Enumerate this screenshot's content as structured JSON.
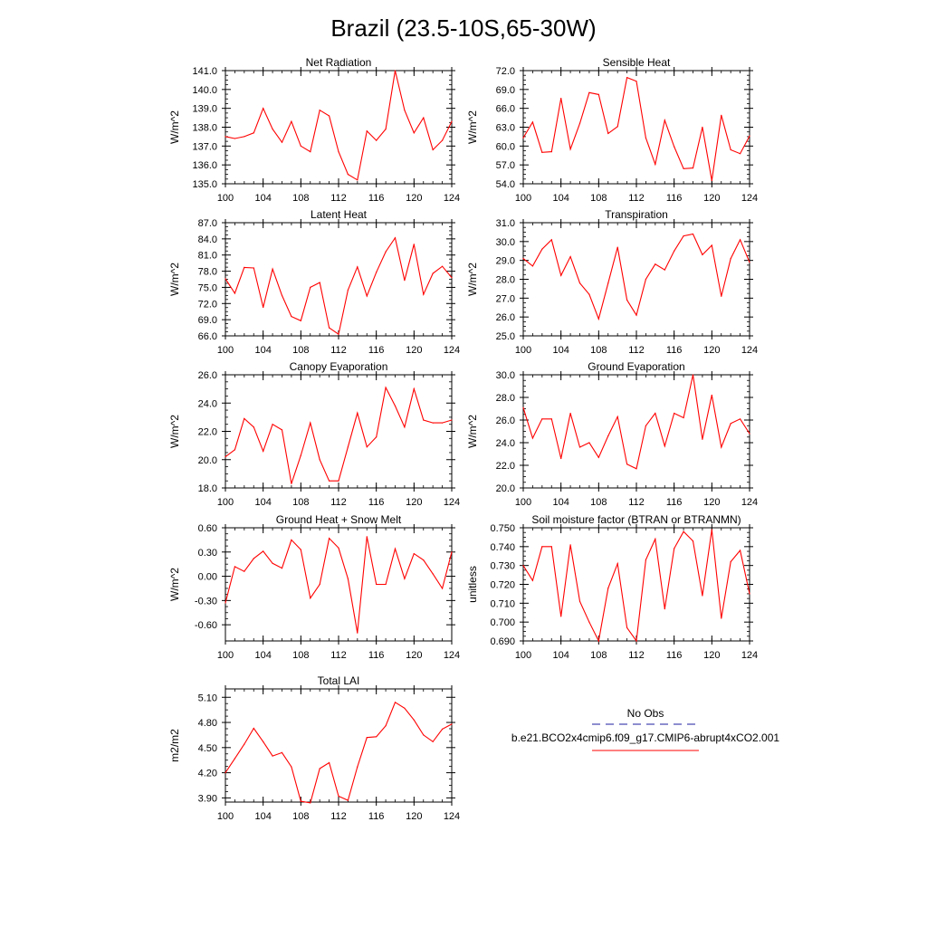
{
  "figure": {
    "title": "Brazil (23.5-10S,65-30W)"
  },
  "legend": {
    "entries": [
      {
        "label": "No Obs",
        "color": "#1c1ca0",
        "dash": true
      },
      {
        "label": "b.e21.BCO2x4cmip6.f09_g17.CMIP6-abrupt4xCO2.001",
        "color": "#ff0000",
        "dash": false
      }
    ]
  },
  "colors": {
    "series": "#ff0000",
    "axis": "#000000"
  },
  "chart_data": [
    {
      "type": "line",
      "title": "Net Radiation",
      "ylabel": "W/m^2",
      "ylim": [
        135.0,
        141.0
      ],
      "yticks": [
        "135.0",
        "136.0",
        "137.0",
        "138.0",
        "139.0",
        "140.0",
        "141.0"
      ],
      "xlim": [
        100,
        124
      ],
      "xticks": [
        "100",
        "104",
        "108",
        "112",
        "116",
        "120",
        "124"
      ],
      "x": [
        100,
        101,
        102,
        103,
        104,
        105,
        106,
        107,
        108,
        109,
        110,
        111,
        112,
        113,
        114,
        115,
        116,
        117,
        118,
        119,
        120,
        121,
        122,
        123,
        124
      ],
      "series": [
        {
          "values": [
            137.5,
            137.4,
            137.5,
            137.7,
            139.0,
            137.9,
            137.2,
            138.3,
            137.0,
            136.7,
            138.9,
            138.6,
            136.7,
            135.5,
            135.2,
            137.8,
            137.3,
            137.9,
            141.0,
            138.9,
            137.7,
            138.5,
            136.8,
            137.3,
            138.3
          ]
        }
      ]
    },
    {
      "type": "line",
      "title": "Sensible Heat",
      "ylabel": "W/m^2",
      "ylim": [
        54.0,
        72.0
      ],
      "yticks": [
        "54.0",
        "57.0",
        "60.0",
        "63.0",
        "66.0",
        "69.0",
        "72.0"
      ],
      "xlim": [
        100,
        124
      ],
      "xticks": [
        "100",
        "104",
        "108",
        "112",
        "116",
        "120",
        "124"
      ],
      "x": [
        100,
        101,
        102,
        103,
        104,
        105,
        106,
        107,
        108,
        109,
        110,
        111,
        112,
        113,
        114,
        115,
        116,
        117,
        118,
        119,
        120,
        121,
        122,
        123,
        124
      ],
      "series": [
        {
          "values": [
            61.3,
            63.8,
            59.0,
            59.1,
            67.6,
            59.5,
            63.6,
            68.5,
            68.2,
            62.0,
            63.1,
            70.9,
            70.3,
            61.3,
            57.1,
            64.1,
            59.9,
            56.4,
            56.5,
            63.0,
            54.5,
            64.9,
            59.4,
            58.8,
            61.6
          ]
        }
      ]
    },
    {
      "type": "line",
      "title": "Latent Heat",
      "ylabel": "W/m^2",
      "ylim": [
        66.0,
        87.0
      ],
      "yticks": [
        "66.0",
        "69.0",
        "72.0",
        "75.0",
        "78.0",
        "81.0",
        "84.0",
        "87.0"
      ],
      "xlim": [
        100,
        124
      ],
      "xticks": [
        "100",
        "104",
        "108",
        "112",
        "116",
        "120",
        "124"
      ],
      "x": [
        100,
        101,
        102,
        103,
        104,
        105,
        106,
        107,
        108,
        109,
        110,
        111,
        112,
        113,
        114,
        115,
        116,
        117,
        118,
        119,
        120,
        121,
        122,
        123,
        124
      ],
      "series": [
        {
          "values": [
            76.6,
            73.9,
            78.7,
            78.6,
            71.3,
            78.4,
            73.5,
            69.6,
            68.8,
            75.0,
            75.9,
            67.5,
            66.3,
            74.5,
            78.8,
            73.4,
            77.8,
            81.6,
            84.2,
            76.3,
            83.0,
            73.7,
            77.6,
            78.9,
            76.8
          ]
        }
      ]
    },
    {
      "type": "line",
      "title": "Transpiration",
      "ylabel": "W/m^2",
      "ylim": [
        25.0,
        31.0
      ],
      "yticks": [
        "25.0",
        "26.0",
        "27.0",
        "28.0",
        "29.0",
        "30.0",
        "31.0"
      ],
      "xlim": [
        100,
        124
      ],
      "xticks": [
        "100",
        "104",
        "108",
        "112",
        "116",
        "120",
        "124"
      ],
      "x": [
        100,
        101,
        102,
        103,
        104,
        105,
        106,
        107,
        108,
        109,
        110,
        111,
        112,
        113,
        114,
        115,
        116,
        117,
        118,
        119,
        120,
        121,
        122,
        123,
        124
      ],
      "series": [
        {
          "values": [
            29.1,
            28.7,
            29.6,
            30.1,
            28.2,
            29.2,
            27.8,
            27.2,
            25.9,
            27.8,
            29.7,
            26.9,
            26.1,
            28.0,
            28.8,
            28.5,
            29.5,
            30.3,
            30.4,
            29.3,
            29.8,
            27.1,
            29.1,
            30.1,
            28.9
          ]
        }
      ]
    },
    {
      "type": "line",
      "title": "Canopy Evaporation",
      "ylabel": "W/m^2",
      "ylim": [
        18.0,
        26.0
      ],
      "yticks": [
        "18.0",
        "20.0",
        "22.0",
        "24.0",
        "26.0"
      ],
      "xlim": [
        100,
        124
      ],
      "xticks": [
        "100",
        "104",
        "108",
        "112",
        "116",
        "120",
        "124"
      ],
      "x": [
        100,
        101,
        102,
        103,
        104,
        105,
        106,
        107,
        108,
        109,
        110,
        111,
        112,
        113,
        114,
        115,
        116,
        117,
        118,
        119,
        120,
        121,
        122,
        123,
        124
      ],
      "series": [
        {
          "values": [
            20.2,
            20.7,
            22.9,
            22.3,
            20.6,
            22.5,
            22.1,
            18.3,
            20.3,
            22.6,
            20.0,
            18.5,
            18.5,
            20.9,
            23.3,
            20.9,
            21.6,
            25.1,
            23.8,
            22.3,
            25.0,
            22.8,
            22.6,
            22.6,
            22.8
          ]
        }
      ]
    },
    {
      "type": "line",
      "title": "Ground Evaporation",
      "ylabel": "W/m^2",
      "ylim": [
        20.0,
        30.0
      ],
      "yticks": [
        "20.0",
        "22.0",
        "24.0",
        "26.0",
        "28.0",
        "30.0"
      ],
      "xlim": [
        100,
        124
      ],
      "xticks": [
        "100",
        "104",
        "108",
        "112",
        "116",
        "120",
        "124"
      ],
      "x": [
        100,
        101,
        102,
        103,
        104,
        105,
        106,
        107,
        108,
        109,
        110,
        111,
        112,
        113,
        114,
        115,
        116,
        117,
        118,
        119,
        120,
        121,
        122,
        123,
        124
      ],
      "series": [
        {
          "values": [
            27.1,
            24.4,
            26.1,
            26.1,
            22.6,
            26.6,
            23.6,
            24.0,
            22.7,
            24.6,
            26.3,
            22.1,
            21.7,
            25.5,
            26.6,
            23.7,
            26.6,
            26.2,
            30.0,
            24.3,
            28.2,
            23.6,
            25.7,
            26.1,
            24.8
          ]
        }
      ]
    },
    {
      "type": "line",
      "title": "Ground Heat + Snow Melt",
      "ylabel": "W/m^2",
      "ylim": [
        -0.8,
        0.6
      ],
      "yticks": [
        "-0.60",
        "-0.30",
        "0.00",
        "0.30",
        "0.60"
      ],
      "ytick_values": [
        -0.6,
        -0.3,
        0.0,
        0.3,
        0.6
      ],
      "xlim": [
        100,
        124
      ],
      "xticks": [
        "100",
        "104",
        "108",
        "112",
        "116",
        "120",
        "124"
      ],
      "x": [
        100,
        101,
        102,
        103,
        104,
        105,
        106,
        107,
        108,
        109,
        110,
        111,
        112,
        113,
        114,
        115,
        116,
        117,
        118,
        119,
        120,
        121,
        122,
        123,
        124
      ],
      "series": [
        {
          "values": [
            -0.33,
            0.12,
            0.06,
            0.22,
            0.31,
            0.16,
            0.1,
            0.45,
            0.33,
            -0.27,
            -0.1,
            0.47,
            0.35,
            -0.03,
            -0.7,
            0.49,
            -0.1,
            -0.1,
            0.34,
            -0.03,
            0.28,
            0.2,
            0.03,
            -0.15,
            0.3
          ]
        }
      ]
    },
    {
      "type": "line",
      "title": "Soil moisture factor (BTRAN or BTRANMN)",
      "ylabel": "unitless",
      "ylim": [
        0.69,
        0.75
      ],
      "yticks": [
        "0.690",
        "0.700",
        "0.710",
        "0.720",
        "0.730",
        "0.740",
        "0.750"
      ],
      "xlim": [
        100,
        124
      ],
      "xticks": [
        "100",
        "104",
        "108",
        "112",
        "116",
        "120",
        "124"
      ],
      "x": [
        100,
        101,
        102,
        103,
        104,
        105,
        106,
        107,
        108,
        109,
        110,
        111,
        112,
        113,
        114,
        115,
        116,
        117,
        118,
        119,
        120,
        121,
        122,
        123,
        124
      ],
      "series": [
        {
          "values": [
            0.73,
            0.722,
            0.74,
            0.74,
            0.703,
            0.741,
            0.711,
            0.7,
            0.69,
            0.718,
            0.731,
            0.697,
            0.69,
            0.733,
            0.744,
            0.707,
            0.739,
            0.748,
            0.743,
            0.714,
            0.749,
            0.702,
            0.732,
            0.738,
            0.715
          ]
        }
      ]
    },
    {
      "type": "line",
      "title": "Total LAI",
      "ylabel": "m2/m2",
      "ylim": [
        3.85,
        5.2
      ],
      "yticks": [
        "3.90",
        "4.20",
        "4.50",
        "4.80",
        "5.10"
      ],
      "ytick_values": [
        3.9,
        4.2,
        4.5,
        4.8,
        5.1
      ],
      "xlim": [
        100,
        124
      ],
      "xticks": [
        "100",
        "104",
        "108",
        "112",
        "116",
        "120",
        "124"
      ],
      "x": [
        100,
        101,
        102,
        103,
        104,
        105,
        106,
        107,
        108,
        109,
        110,
        111,
        112,
        113,
        114,
        115,
        116,
        117,
        118,
        119,
        120,
        121,
        122,
        123,
        124
      ],
      "series": [
        {
          "values": [
            4.2,
            4.37,
            4.54,
            4.73,
            4.57,
            4.4,
            4.44,
            4.27,
            3.86,
            3.84,
            4.25,
            4.32,
            3.92,
            3.87,
            4.27,
            4.62,
            4.63,
            4.76,
            5.04,
            4.97,
            4.83,
            4.65,
            4.57,
            4.72,
            4.78
          ]
        }
      ]
    }
  ]
}
